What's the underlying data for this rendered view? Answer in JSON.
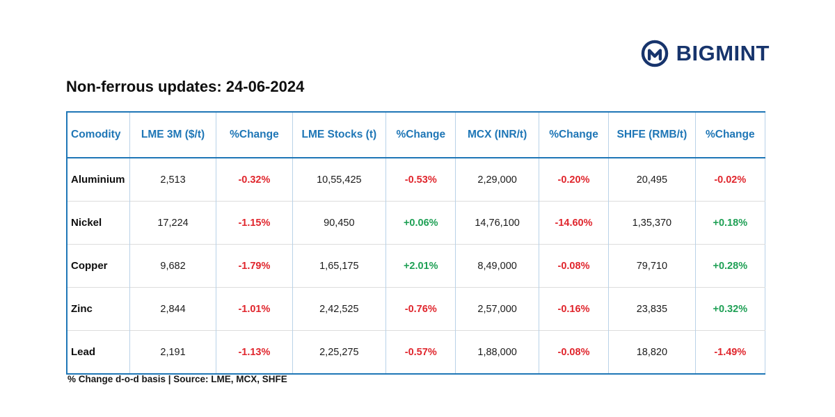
{
  "brand": {
    "name": "BIGMINT"
  },
  "title": "Non-ferrous updates: 24-06-2024",
  "footnote": "% Change d-o-d basis | Source: LME, MCX, SHFE",
  "colors": {
    "header_blue": "#1e76b6",
    "negative_red": "#e0262d",
    "positive_green": "#1fa055",
    "brand_navy": "#17346c",
    "column_divider": "#b9d2e8",
    "row_divider": "#dcdcdc"
  },
  "chart_data": {
    "type": "table",
    "title": "Non-ferrous updates: 24-06-2024",
    "columns": [
      "Comodity",
      "LME 3M ($/t)",
      "%Change",
      "LME Stocks (t)",
      "%Change",
      "MCX (INR/t)",
      "%Change",
      "SHFE (RMB/t)",
      "%Change"
    ],
    "change_column_indexes": [
      2,
      4,
      6,
      8
    ],
    "rows": [
      [
        "Aluminium",
        "2,513",
        "-0.32%",
        "10,55,425",
        "-0.53%",
        "2,29,000",
        "-0.20%",
        "20,495",
        "-0.02%"
      ],
      [
        "Nickel",
        "17,224",
        "-1.15%",
        "90,450",
        "+0.06%",
        "14,76,100",
        "-14.60%",
        "1,35,370",
        "+0.18%"
      ],
      [
        "Copper",
        "9,682",
        "-1.79%",
        "1,65,175",
        "+2.01%",
        "8,49,000",
        "-0.08%",
        "79,710",
        "+0.28%"
      ],
      [
        "Zinc",
        "2,844",
        "-1.01%",
        "2,42,525",
        "-0.76%",
        "2,57,000",
        "-0.16%",
        "23,835",
        "+0.32%"
      ],
      [
        "Lead",
        "2,191",
        "-1.13%",
        "2,25,275",
        "-0.57%",
        "1,88,000",
        "-0.08%",
        "18,820",
        "-1.49%"
      ]
    ]
  }
}
